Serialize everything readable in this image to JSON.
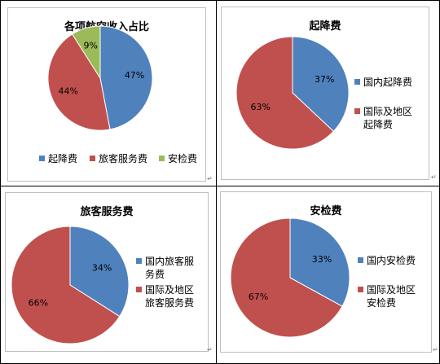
{
  "chart_data": [
    {
      "type": "pie",
      "title": "各项航空收入占比",
      "categories": [
        "起降费",
        "旅客服务费",
        "安检费"
      ],
      "values": [
        47,
        44,
        9
      ],
      "labels": [
        "47%",
        "44%",
        "9%"
      ],
      "colors": [
        "#4f81bd",
        "#c0504d",
        "#9bbb59"
      ],
      "legend": "bottom"
    },
    {
      "type": "pie",
      "title": "起降费",
      "categories": [
        "国内起降费",
        "国际及地区起降费"
      ],
      "legend_lines": [
        [
          "国内起降费"
        ],
        [
          "国际及地区",
          "起降费"
        ]
      ],
      "values": [
        37,
        63
      ],
      "labels": [
        "37%",
        "63%"
      ],
      "colors": [
        "#4f81bd",
        "#c0504d"
      ],
      "legend": "right"
    },
    {
      "type": "pie",
      "title": "旅客服务费",
      "categories": [
        "国内旅客服务费",
        "国际及地区旅客服务费"
      ],
      "legend_lines": [
        [
          "国内旅客服",
          "务费"
        ],
        [
          "国际及地区",
          "旅客服务费"
        ]
      ],
      "values": [
        34,
        66
      ],
      "labels": [
        "34%",
        "66%"
      ],
      "colors": [
        "#4f81bd",
        "#c0504d"
      ],
      "legend": "right"
    },
    {
      "type": "pie",
      "title": "安检费",
      "categories": [
        "国内安检费",
        "国际及地区安检费"
      ],
      "legend_lines": [
        [
          "国内安检费"
        ],
        [
          "国际及地区",
          "安检费"
        ]
      ],
      "values": [
        33,
        67
      ],
      "labels": [
        "33%",
        "67%"
      ],
      "colors": [
        "#4f81bd",
        "#c0504d"
      ],
      "legend": "right"
    }
  ]
}
